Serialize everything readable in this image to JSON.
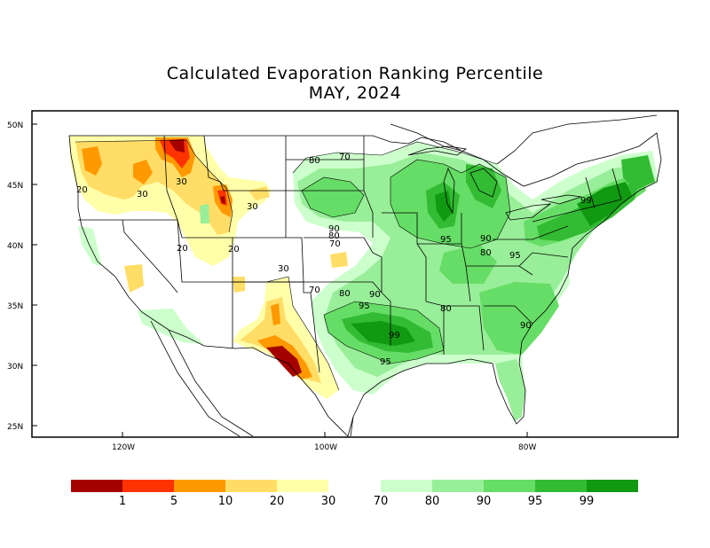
{
  "title": "Calculated Evaporation Ranking Percentile",
  "subtitle": "MAY, 2024",
  "lat_ticks": [
    "50N",
    "45N",
    "40N",
    "35N",
    "30N",
    "25N"
  ],
  "lon_ticks": [
    "120W",
    "100W",
    "80W"
  ],
  "contour_labels": [
    "20",
    "30",
    "30",
    "30",
    "20",
    "20",
    "30",
    "70",
    "80",
    "90",
    "80",
    "70",
    "70",
    "80",
    "90",
    "95",
    "99",
    "95",
    "95",
    "90",
    "80",
    "95",
    "80",
    "90",
    "99"
  ],
  "legend": {
    "labels": [
      "1",
      "5",
      "10",
      "20",
      "30",
      "70",
      "80",
      "90",
      "95",
      "99"
    ],
    "colors": {
      "below_1": "#a50000",
      "1_5": "#ff3300",
      "5_10": "#ff9900",
      "10_20": "#ffdd66",
      "20_30": "#ffffaa",
      "70_80": "#ccffcc",
      "80_90": "#99ee99",
      "90_95": "#66dd66",
      "95_99": "#33bb33",
      "above_99": "#119911"
    }
  }
}
